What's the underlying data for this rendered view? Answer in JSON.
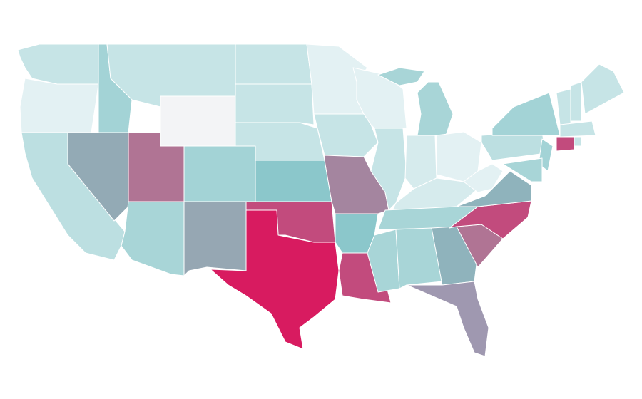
{
  "map": {
    "regions": [
      {
        "color": "#c6e4e6"
      },
      {
        "color": "#e3f1f3"
      },
      {
        "color": "#bcdfe1"
      },
      {
        "color": "#93aab5"
      },
      {
        "color": "#a3d3d6"
      },
      {
        "color": "#c6e4e6"
      },
      {
        "color": "#f3f4f6"
      },
      {
        "color": "#b07494"
      },
      {
        "color": "#a3d3d6"
      },
      {
        "color": "#a8d5d7"
      },
      {
        "color": "#96a7b3"
      },
      {
        "color": "#c6e4e6"
      },
      {
        "color": "#c6e4e6"
      },
      {
        "color": "#c6e4e6"
      },
      {
        "color": "#8bc7cb"
      },
      {
        "color": "#c24b7d"
      },
      {
        "color": "#d81b60"
      },
      {
        "color": "#e3f1f3"
      },
      {
        "color": "#c6e4e6"
      },
      {
        "color": "#a4859f"
      },
      {
        "color": "#8bc7cb"
      },
      {
        "color": "#c24b7d"
      },
      {
        "color": "#e3f1f3"
      },
      {
        "color": "#c6e4e6"
      },
      {
        "color": "#a8d5d7"
      },
      {
        "color": "#d6ebed"
      },
      {
        "color": "#e3f1f3"
      },
      {
        "color": "#d6ebed"
      },
      {
        "color": "#a8d5d7"
      },
      {
        "color": "#a8d5d7"
      },
      {
        "color": "#a8d5d7"
      },
      {
        "color": "#8fb3bc"
      },
      {
        "color": "#9f98b0"
      },
      {
        "color": "#b07494"
      },
      {
        "color": "#c24b7d"
      },
      {
        "color": "#8fb3bc"
      },
      {
        "color": "#e3f1f3"
      },
      {
        "color": "#bcdfe1"
      },
      {
        "color": "#a3d3d6"
      },
      {
        "color": "#a3d3d6"
      },
      {
        "color": "#a8d5d7"
      },
      {
        "color": "#c6e4e6"
      },
      {
        "color": "#c6e4e6"
      },
      {
        "color": "#c6e4e6"
      },
      {
        "color": "#c6e4e6"
      },
      {
        "color": "#c24b7d"
      },
      {
        "color": "#c6e4e6"
      }
    ]
  }
}
